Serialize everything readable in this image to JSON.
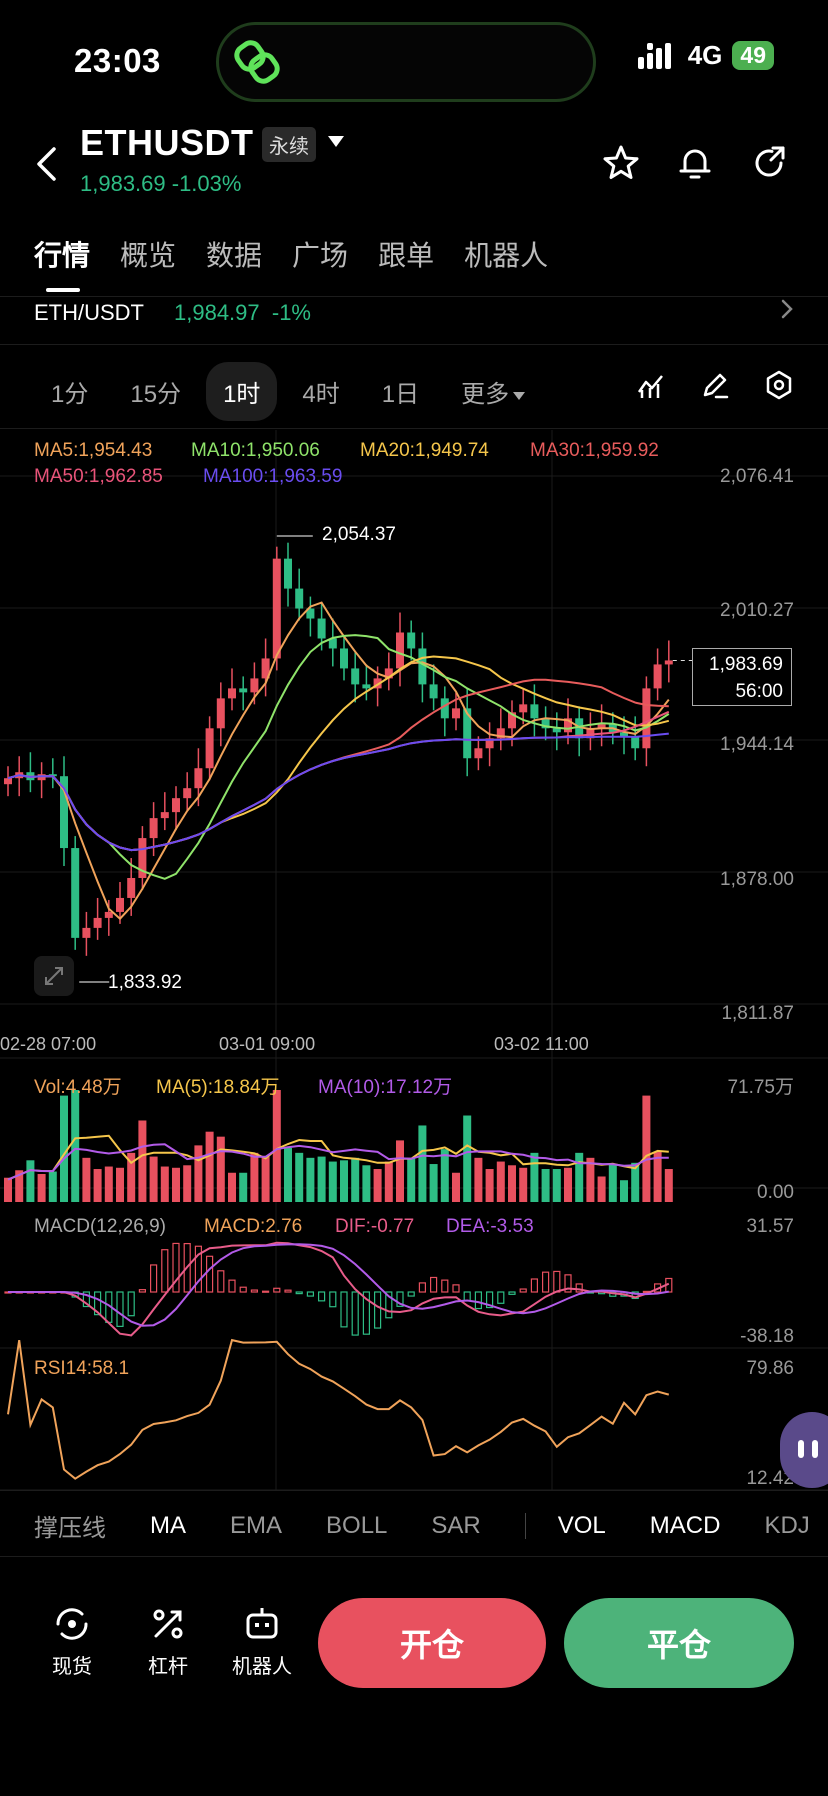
{
  "status_bar": {
    "time": "23:03",
    "network": "4G",
    "battery": "49"
  },
  "header": {
    "pair": "ETHUSDT",
    "contract_type": "永续",
    "price_change": "1,983.69 -1.03%"
  },
  "tabs": [
    "行情",
    "概览",
    "数据",
    "广场",
    "跟单",
    "机器人"
  ],
  "spot": {
    "pair": "ETH/USDT",
    "price_change": "1,984.97  -1%"
  },
  "intervals": [
    "1分",
    "15分",
    "1时",
    "4时",
    "1日",
    "更多"
  ],
  "ma_legend": {
    "ma5": "MA5:1,954.43",
    "ma10": "MA10:1,950.06",
    "ma20": "MA20:1,949.74",
    "ma30": "MA30:1,959.92",
    "ma50": "MA50:1,962.85",
    "ma100": "MA100:1,963.59"
  },
  "price_axis": [
    "2,076.41",
    "2,010.27",
    "1,944.14",
    "1,878.00",
    "1,811.87"
  ],
  "annotations": {
    "high": "2,054.37",
    "low": "1,833.92"
  },
  "last_price": {
    "price": "1,983.69",
    "countdown": "56:00"
  },
  "x_axis": [
    "02-28 07:00",
    "03-01 09:00",
    "03-02 11:00"
  ],
  "volume": {
    "vol": "Vol:4.48万",
    "ma5": "MA(5):18.84万",
    "ma10": "MA(10):17.12万",
    "axis_top": "71.75万",
    "axis_bottom": "0.00"
  },
  "macd": {
    "title": "MACD(12,26,9)",
    "macd": "MACD:2.76",
    "dif": "DIF:-0.77",
    "dea": "DEA:-3.53",
    "axis_top": "31.57",
    "axis_bottom": "-38.18"
  },
  "rsi": {
    "title": "RSI14:58.1",
    "axis_top": "79.86",
    "axis_bottom": "12.42"
  },
  "indicators": [
    "撑压线",
    "MA",
    "EMA",
    "BOLL",
    "SAR",
    "VOL",
    "MACD",
    "KDJ"
  ],
  "bottom_nav": [
    "现货",
    "杠杆",
    "机器人"
  ],
  "actions": {
    "open": "开仓",
    "close": "平仓"
  },
  "colors": {
    "up": "#2ebd85",
    "down": "#e8515f",
    "ma5": "#f0a35a",
    "ma10": "#8fe36a",
    "ma20": "#f5c64b",
    "ma30": "#e85c5c",
    "ma50": "#e9547a",
    "ma100": "#6a4df0"
  },
  "chart_data": {
    "type": "candlestick",
    "interval": "1时",
    "ylim": [
      1811.87,
      2076.41
    ],
    "closes": [
      1925,
      1928,
      1924,
      1927,
      1926,
      1890,
      1845,
      1850,
      1855,
      1858,
      1865,
      1875,
      1895,
      1905,
      1908,
      1915,
      1920,
      1930,
      1950,
      1965,
      1970,
      1968,
      1975,
      1985,
      2035,
      2020,
      2010,
      2005,
      1995,
      1990,
      1980,
      1972,
      1970,
      1975,
      1980,
      1998,
      1990,
      1972,
      1965,
      1955,
      1960,
      1935,
      1940,
      1945,
      1950,
      1958,
      1962,
      1955,
      1950,
      1948,
      1955,
      1945,
      1950,
      1952,
      1948,
      1946,
      1940,
      1970,
      1982,
      1984
    ]
  }
}
